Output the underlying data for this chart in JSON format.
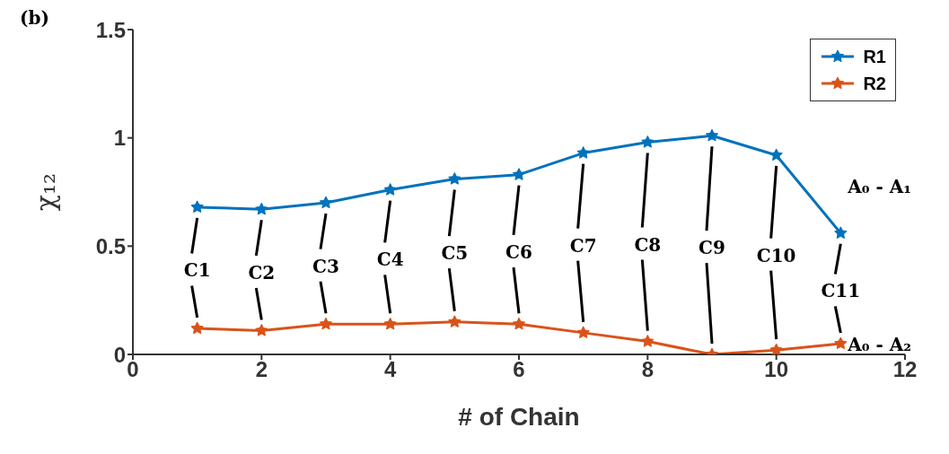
{
  "chart_data": {
    "type": "line",
    "xlabel": "# of Chain",
    "ylabel": "χ₁₂",
    "x": [
      1,
      2,
      3,
      4,
      5,
      6,
      7,
      8,
      9,
      10,
      11
    ],
    "series": [
      {
        "name": "R1",
        "color": "#0072bd",
        "values": [
          0.68,
          0.67,
          0.7,
          0.76,
          0.81,
          0.83,
          0.93,
          0.98,
          1.01,
          0.92,
          0.56
        ]
      },
      {
        "name": "R2",
        "color": "#d95319",
        "values": [
          0.12,
          0.11,
          0.14,
          0.14,
          0.15,
          0.14,
          0.1,
          0.06,
          0.0,
          0.02,
          0.05
        ]
      }
    ],
    "xlim": [
      0,
      12
    ],
    "xticks": [
      0,
      2,
      4,
      6,
      8,
      10,
      12
    ],
    "ylim": [
      0,
      1.5
    ],
    "yticks": [
      0,
      0.5,
      1,
      1.5
    ],
    "legend": "top right",
    "marker": "star",
    "line_style": "solid",
    "grid": false,
    "annotations": [
      "(b)",
      "C1",
      "C2",
      "C3",
      "C4",
      "C5",
      "C6",
      "C7",
      "C8",
      "C9",
      "C10",
      "C11",
      "A₀ - A₁",
      "A₀ - A₂"
    ]
  }
}
